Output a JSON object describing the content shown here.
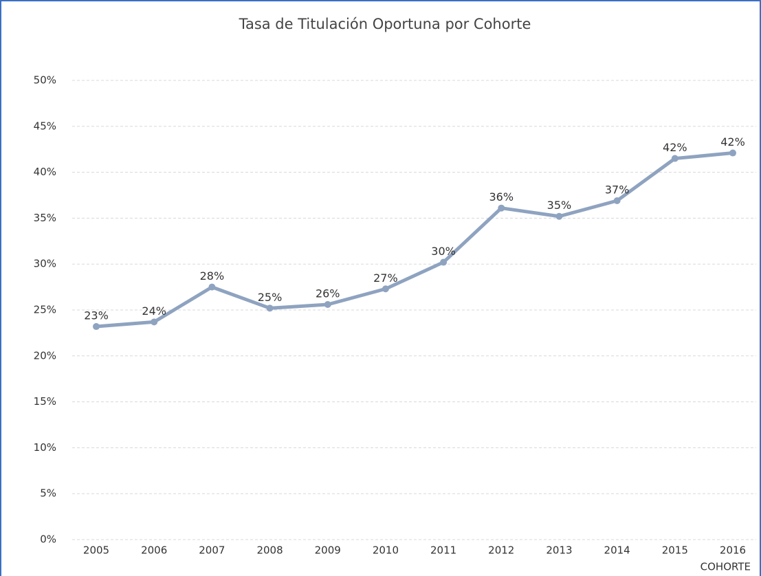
{
  "chart_data": {
    "type": "line",
    "title": "Tasa de Titulación Oportuna por Cohorte",
    "x_label": "COHORTE",
    "categories": [
      "2005",
      "2006",
      "2007",
      "2008",
      "2009",
      "2010",
      "2011",
      "2012",
      "2013",
      "2014",
      "2015",
      "2016"
    ],
    "series": [
      {
        "name": "Tasa de Titulación Oportuna",
        "color": "#8ea3c0",
        "values": [
          23.2,
          23.7,
          27.5,
          25.2,
          25.6,
          27.3,
          30.2,
          36.1,
          35.2,
          36.9,
          41.5,
          42.1
        ],
        "value_labels": [
          "23%",
          "24%",
          "28%",
          "25%",
          "26%",
          "27%",
          "30%",
          "36%",
          "35%",
          "37%",
          "42%",
          "42%"
        ]
      }
    ],
    "ylim": [
      0,
      50
    ],
    "yticks": [
      {
        "value": 0,
        "label": "0%"
      },
      {
        "value": 5,
        "label": "5%"
      },
      {
        "value": 10,
        "label": "10%"
      },
      {
        "value": 15,
        "label": "15%"
      },
      {
        "value": 20,
        "label": "20%"
      },
      {
        "value": 25,
        "label": "25%"
      },
      {
        "value": 30,
        "label": "30%"
      },
      {
        "value": 35,
        "label": "35%"
      },
      {
        "value": 40,
        "label": "40%"
      },
      {
        "value": 45,
        "label": "45%"
      },
      {
        "value": 50,
        "label": "50%"
      }
    ],
    "grid": true
  }
}
